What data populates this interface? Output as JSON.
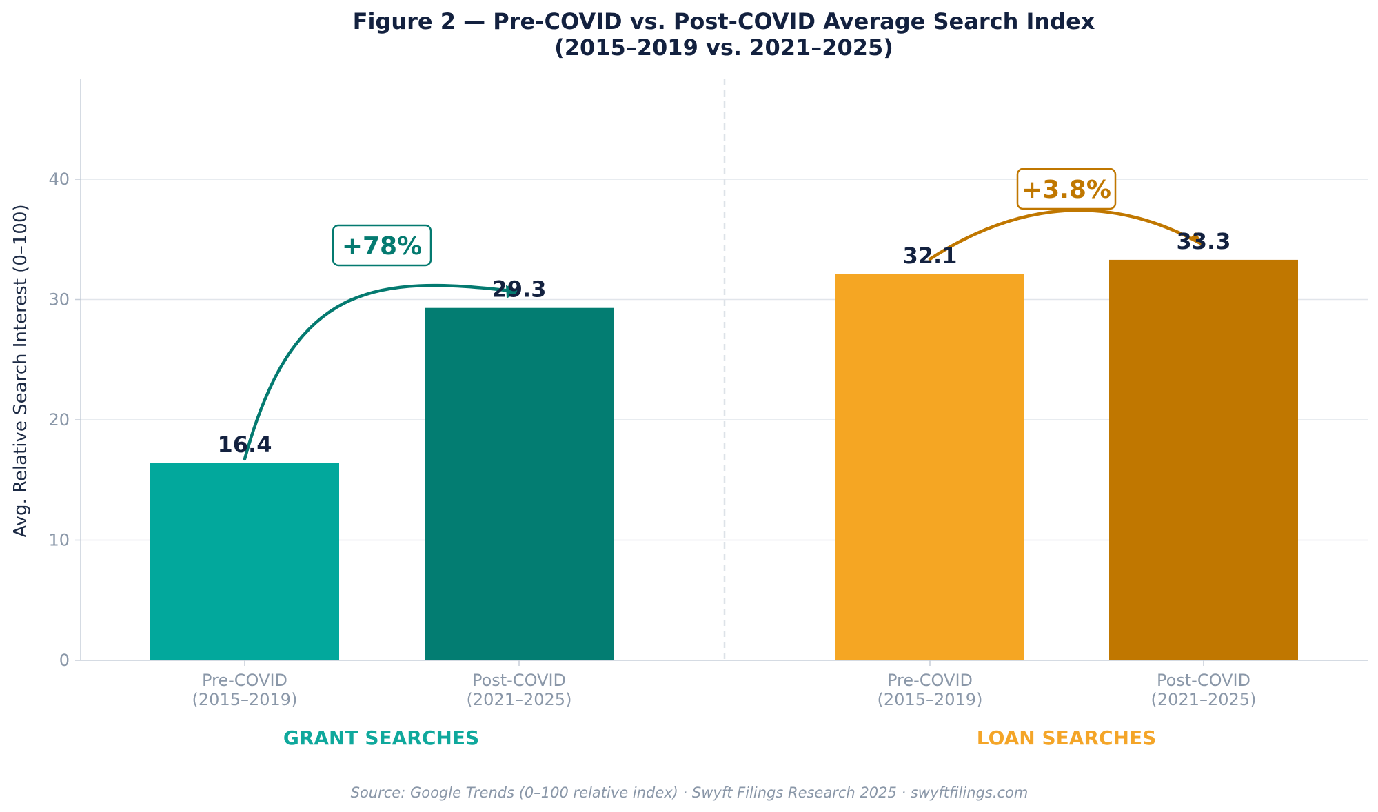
{
  "chart_data": {
    "type": "bar",
    "title_line1": "Figure 2 — Pre-COVID vs. Post-COVID Average Search Index",
    "title_line2": "(2015–2019 vs. 2021–2025)",
    "ylabel": "Avg. Relative Search Interest (0–100)",
    "ylim": [
      0,
      48
    ],
    "yticks": [
      "0",
      "10",
      "20",
      "30",
      "40"
    ],
    "grid": true,
    "groups": [
      {
        "name": "GRANT SEARCHES",
        "color": "#0fa89c",
        "change": "+78%",
        "change_color": "#047a70",
        "bars": [
          {
            "category_line1": "Pre-COVID",
            "category_line2": "(2015–2019)",
            "value": 16.4,
            "label": "16.4",
            "color": "#02a89c"
          },
          {
            "category_line1": "Post-COVID",
            "category_line2": "(2021–2025)",
            "value": 29.3,
            "label": "29.3",
            "color": "#037d72"
          }
        ]
      },
      {
        "name": "LOAN SEARCHES",
        "color": "#f4a528",
        "change": "+3.8%",
        "change_color": "#c07700",
        "bars": [
          {
            "category_line1": "Pre-COVID",
            "category_line2": "(2015–2019)",
            "value": 32.1,
            "label": "32.1",
            "color": "#f5a623"
          },
          {
            "category_line1": "Post-COVID",
            "category_line2": "(2021–2025)",
            "value": 33.3,
            "label": "33.3",
            "color": "#c07700"
          }
        ]
      }
    ],
    "source": "Source: Google Trends (0–100 relative index) · Swyft Filings Research 2025 · swyftfilings.com"
  }
}
